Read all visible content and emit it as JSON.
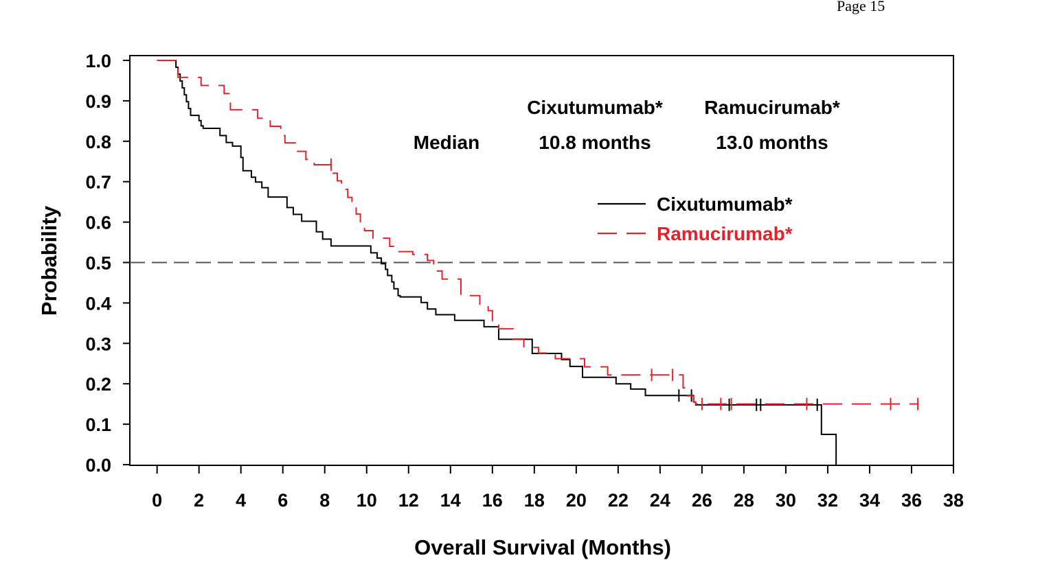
{
  "header": {
    "page": "Page 15"
  },
  "colors": {
    "cixutumumab": "#000000",
    "ramucirumab": "#e8202a",
    "reference_line": "#555555"
  },
  "annotation": {
    "col1_header": "Cixutumumab*",
    "col2_header": "Ramucirumab*",
    "row_label": "Median",
    "col1_value": "10.8 months",
    "col2_value": "13.0 months"
  },
  "legend": {
    "items": [
      {
        "label": "Cixutumumab*",
        "color": "#000000",
        "style": "solid"
      },
      {
        "label": "Ramucirumab*",
        "color": "#e8202a",
        "style": "dashed"
      }
    ]
  },
  "chart_data": {
    "type": "line",
    "subtype": "kaplan-meier step",
    "xlabel": "Overall Survival (Months)",
    "ylabel": "Probability",
    "xlim": [
      -1.3,
      38
    ],
    "ylim": [
      0,
      1.0
    ],
    "xticks": [
      0,
      2,
      4,
      6,
      8,
      10,
      12,
      14,
      16,
      18,
      20,
      22,
      24,
      26,
      28,
      30,
      32,
      34,
      36,
      38
    ],
    "yticks": [
      0.0,
      0.1,
      0.2,
      0.3,
      0.4,
      0.5,
      0.6,
      0.7,
      0.8,
      0.9,
      1.0
    ],
    "reference_line": {
      "y": 0.5,
      "style": "dashed"
    },
    "legend_position": "center-right",
    "grid": false,
    "series": [
      {
        "name": "Cixutumumab*",
        "color": "#000000",
        "style": "solid",
        "x": [
          0.7,
          0.9,
          1.0,
          1.1,
          1.2,
          1.3,
          1.4,
          1.5,
          1.6,
          2.0,
          2.1,
          2.2,
          3.0,
          3.3,
          3.6,
          4.0,
          4.1,
          4.5,
          4.7,
          5.0,
          5.3,
          5.8,
          6.2,
          6.5,
          6.9,
          7.6,
          7.9,
          8.3,
          10.2,
          10.5,
          10.7,
          10.9,
          11.0,
          11.2,
          11.3,
          11.5,
          11.6,
          12.6,
          12.9,
          13.3,
          14.2,
          15.6,
          16.3,
          17.9,
          19.3,
          19.7,
          20.3,
          21.9,
          22.6,
          23.3,
          25.6,
          25.7,
          31.7,
          32.4
        ],
        "y": [
          1.0,
          0.983,
          0.966,
          0.949,
          0.932,
          0.915,
          0.898,
          0.881,
          0.864,
          0.851,
          0.838,
          0.832,
          0.814,
          0.797,
          0.788,
          0.76,
          0.727,
          0.711,
          0.699,
          0.685,
          0.662,
          0.662,
          0.636,
          0.619,
          0.602,
          0.576,
          0.558,
          0.541,
          0.524,
          0.511,
          0.497,
          0.483,
          0.468,
          0.452,
          0.435,
          0.418,
          0.415,
          0.401,
          0.385,
          0.371,
          0.357,
          0.341,
          0.31,
          0.275,
          0.26,
          0.243,
          0.216,
          0.2,
          0.187,
          0.171,
          0.155,
          0.148,
          0.075,
          0.0
        ],
        "censored_x": [
          24.9,
          25.5,
          27.3,
          28.6,
          28.8,
          31.5
        ]
      },
      {
        "name": "Ramucirumab*",
        "color": "#e8202a",
        "style": "dashed",
        "x": [
          0.9,
          1.0,
          2.1,
          3.2,
          3.5,
          4.8,
          5.4,
          5.9,
          6.1,
          6.6,
          7.1,
          7.5,
          8.4,
          8.6,
          8.8,
          9.1,
          9.3,
          9.5,
          9.7,
          9.9,
          10.3,
          11.1,
          11.4,
          12.2,
          12.9,
          13.2,
          13.6,
          14.5,
          15.4,
          15.8,
          16.0,
          16.3,
          17.0,
          17.5,
          18.2,
          19.0,
          20.4,
          21.5,
          24.4,
          25.1,
          25.3,
          25.6,
          25.7
        ],
        "y": [
          1.0,
          0.958,
          0.938,
          0.918,
          0.878,
          0.857,
          0.837,
          0.814,
          0.796,
          0.775,
          0.755,
          0.742,
          0.721,
          0.702,
          0.681,
          0.661,
          0.641,
          0.62,
          0.599,
          0.579,
          0.56,
          0.54,
          0.527,
          0.52,
          0.505,
          0.479,
          0.459,
          0.418,
          0.397,
          0.381,
          0.356,
          0.336,
          0.311,
          0.29,
          0.276,
          0.262,
          0.242,
          0.222,
          0.222,
          0.19,
          0.17,
          0.155,
          0.15
        ],
        "censored_x": [
          8.3,
          23.6,
          24.6,
          26.0,
          26.9,
          27.4,
          31.0,
          35.0,
          36.3
        ]
      }
    ]
  }
}
